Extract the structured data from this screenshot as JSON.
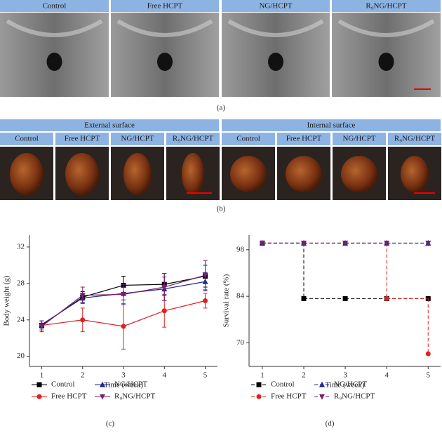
{
  "panel_a": {
    "headers": [
      "Control",
      "Free HCPT",
      "NG/HCPT",
      "R₉NG/HCPT"
    ],
    "label": "(a)"
  },
  "panel_b": {
    "groups": [
      "External surface",
      "Internal surface"
    ],
    "headers": [
      "Control",
      "Free HCPT",
      "NG/HCPT",
      "R₉NG/HCPT",
      "Control",
      "Free HCPT",
      "NG/HCPT",
      "R₉NG/HCPT"
    ],
    "label": "(b)"
  },
  "chart_data": [
    {
      "type": "line",
      "panel_label": "(c)",
      "xlabel": "Time (week)",
      "ylabel": "Body weight (g)",
      "x": [
        1,
        2,
        3,
        4,
        5
      ],
      "xlim": [
        0.7,
        5.3
      ],
      "xticks": [
        1,
        2,
        3,
        4,
        5
      ],
      "ylim": [
        18.9,
        33.3
      ],
      "yticks": [
        20,
        24,
        28,
        32
      ],
      "series": [
        {
          "name": "Control",
          "color": "#000000",
          "marker": "square",
          "values": [
            23.4,
            26.5,
            27.8,
            27.9,
            28.8
          ],
          "errors": [
            0.5,
            0.6,
            1.0,
            1.2,
            1.2
          ]
        },
        {
          "name": "Free HCPT",
          "color": "#e02020",
          "marker": "circle",
          "values": [
            23.4,
            24.0,
            23.3,
            25.0,
            26.1
          ],
          "errors": [
            0.5,
            1.3,
            2.5,
            1.8,
            0.8
          ]
        },
        {
          "name": "NG/HCPT",
          "color": "#1c2a8c",
          "marker": "triangle-up",
          "values": [
            23.5,
            26.4,
            26.9,
            27.4,
            28.2
          ],
          "errors": [
            0.4,
            0.5,
            0.7,
            1.3,
            1.0
          ]
        },
        {
          "name": "R₉NG/HCPT",
          "color": "#7a1f6e",
          "marker": "triangle-down",
          "values": [
            23.3,
            26.7,
            26.8,
            27.6,
            28.9
          ],
          "errors": [
            0.6,
            0.9,
            1.1,
            1.5,
            1.6
          ]
        }
      ]
    },
    {
      "type": "step",
      "panel_label": "(d)",
      "xlabel": "Time (week)",
      "ylabel": "Survival rate (%)",
      "linestyle": "dashed",
      "x": [
        1,
        2,
        3,
        4,
        5
      ],
      "xlim": [
        0.68,
        5.3
      ],
      "xticks": [
        1,
        2,
        3,
        4,
        5
      ],
      "ylim": [
        62.9,
        102.4
      ],
      "yticks": [
        70,
        84,
        98
      ],
      "series": [
        {
          "name": "Control",
          "color": "#000000",
          "marker": "square",
          "values": [
            100,
            83.3,
            83.3,
            83.3,
            83.3
          ]
        },
        {
          "name": "Free HCPT",
          "color": "#e02020",
          "marker": "circle",
          "values": [
            100,
            100,
            100,
            83.3,
            66.7
          ]
        },
        {
          "name": "NG/HCPT",
          "color": "#1c2a8c",
          "marker": "triangle-up",
          "values": [
            100,
            100,
            100,
            100,
            100
          ]
        },
        {
          "name": "R₉NG/HCPT",
          "color": "#7a1f6e",
          "marker": "triangle-down",
          "values": [
            100,
            100,
            100,
            100,
            100
          ]
        }
      ]
    }
  ]
}
